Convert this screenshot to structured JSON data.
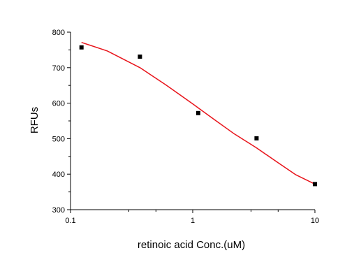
{
  "chart_data": {
    "type": "scatter",
    "title": "",
    "xlabel": "retinoic acid Conc.(uM)",
    "ylabel": "RFUs",
    "x_scale": "log",
    "xlim": [
      0.1,
      10
    ],
    "ylim": [
      300,
      800
    ],
    "x_ticks": [
      0.1,
      1,
      10
    ],
    "x_tick_labels": [
      "0.1",
      "1",
      "10"
    ],
    "y_ticks": [
      300,
      400,
      500,
      600,
      700,
      800
    ],
    "y_tick_labels": [
      "300",
      "400",
      "500",
      "600",
      "700",
      "800"
    ],
    "grid": false,
    "legend": "none",
    "series": [
      {
        "kind": "points",
        "marker": "square",
        "color": "#000000",
        "x": [
          0.123,
          0.37,
          1.11,
          3.33,
          10
        ],
        "y": [
          757,
          731,
          572,
          501,
          372
        ]
      },
      {
        "kind": "fit-line",
        "color": "#e8141b",
        "x": [
          0.123,
          0.2,
          0.37,
          0.6,
          1.0,
          1.5,
          2.2,
          3.3,
          5.0,
          7.0,
          10
        ],
        "y": [
          771,
          747,
          700,
          652,
          598,
          554,
          513,
          475,
          432,
          398,
          372
        ]
      }
    ]
  }
}
